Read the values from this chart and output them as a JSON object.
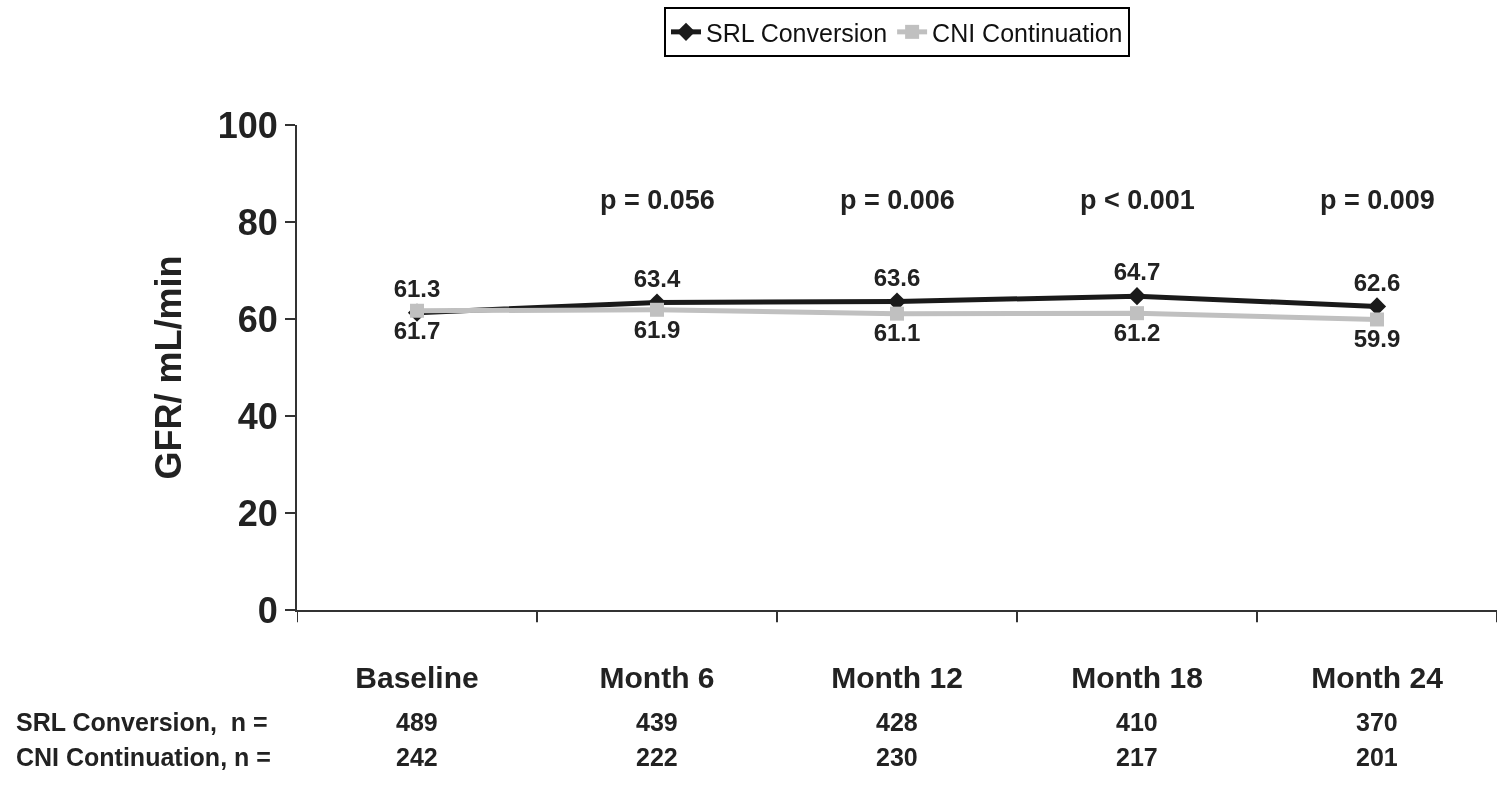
{
  "chart_data": {
    "type": "line",
    "ylabel": "GFR/ mL/min",
    "categories": [
      "Baseline",
      "Month 6",
      "Month 12",
      "Month 18",
      "Month 24"
    ],
    "series": [
      {
        "name": "SRL Conversion",
        "color": "#1a1a1a",
        "marker": "diamond",
        "values": [
          61.3,
          63.4,
          63.6,
          64.7,
          62.6
        ]
      },
      {
        "name": "CNI Continuation",
        "color": "#c0c0c0",
        "marker": "square",
        "values": [
          61.7,
          61.9,
          61.1,
          61.2,
          59.9
        ]
      }
    ],
    "data_labels": true,
    "ylim": [
      0,
      100
    ],
    "yticks": [
      0,
      20,
      40,
      60,
      80,
      100
    ],
    "legend": "top",
    "line_style": "solid",
    "annotations": [
      "p = 0.056",
      "p = 0.006",
      "p < 0.001",
      "p = 0.009",
      "SRL Conversion,  n =",
      "489",
      "439",
      "428",
      "410",
      "370",
      "CNI Continuation, n =",
      "242",
      "222",
      "230",
      "217",
      "201"
    ]
  }
}
